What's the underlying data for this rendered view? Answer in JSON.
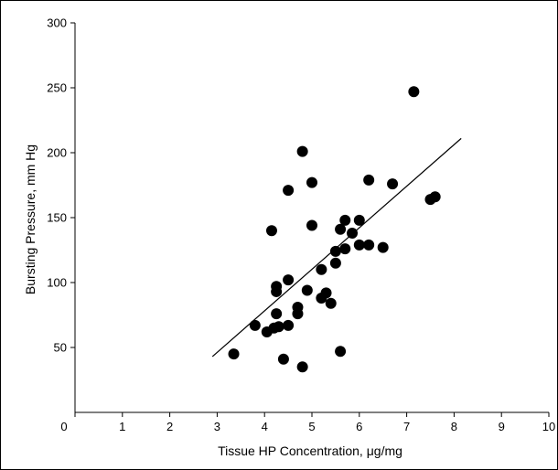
{
  "chart_data": {
    "type": "scatter",
    "xlabel": "Tissue HP Concentration, μg/mg",
    "ylabel": "Bursting Pressure, mm Hg",
    "xlim": [
      0,
      10
    ],
    "ylim": [
      0,
      300
    ],
    "xticks": [
      0,
      1,
      2,
      3,
      4,
      5,
      6,
      7,
      8,
      9,
      10
    ],
    "yticks": [
      50,
      100,
      150,
      200,
      250,
      300
    ],
    "grid": false,
    "points": [
      {
        "x": 3.35,
        "y": 45
      },
      {
        "x": 3.8,
        "y": 67
      },
      {
        "x": 4.05,
        "y": 62
      },
      {
        "x": 4.15,
        "y": 140
      },
      {
        "x": 4.2,
        "y": 65
      },
      {
        "x": 4.25,
        "y": 97
      },
      {
        "x": 4.25,
        "y": 93
      },
      {
        "x": 4.25,
        "y": 76
      },
      {
        "x": 4.3,
        "y": 66
      },
      {
        "x": 4.4,
        "y": 41
      },
      {
        "x": 4.5,
        "y": 171
      },
      {
        "x": 4.5,
        "y": 102
      },
      {
        "x": 4.5,
        "y": 67
      },
      {
        "x": 4.7,
        "y": 81
      },
      {
        "x": 4.7,
        "y": 76
      },
      {
        "x": 4.8,
        "y": 201
      },
      {
        "x": 4.8,
        "y": 35
      },
      {
        "x": 4.9,
        "y": 94
      },
      {
        "x": 5.0,
        "y": 177
      },
      {
        "x": 5.0,
        "y": 144
      },
      {
        "x": 5.2,
        "y": 110
      },
      {
        "x": 5.2,
        "y": 88
      },
      {
        "x": 5.3,
        "y": 92
      },
      {
        "x": 5.4,
        "y": 84
      },
      {
        "x": 5.5,
        "y": 124
      },
      {
        "x": 5.5,
        "y": 115
      },
      {
        "x": 5.6,
        "y": 141
      },
      {
        "x": 5.6,
        "y": 47
      },
      {
        "x": 5.7,
        "y": 148
      },
      {
        "x": 5.7,
        "y": 126
      },
      {
        "x": 5.85,
        "y": 138
      },
      {
        "x": 6.0,
        "y": 148
      },
      {
        "x": 6.0,
        "y": 129
      },
      {
        "x": 6.2,
        "y": 179
      },
      {
        "x": 6.2,
        "y": 129
      },
      {
        "x": 6.5,
        "y": 127
      },
      {
        "x": 6.7,
        "y": 176
      },
      {
        "x": 7.15,
        "y": 247
      },
      {
        "x": 7.5,
        "y": 164
      },
      {
        "x": 7.6,
        "y": 166
      }
    ],
    "trendline": {
      "x": [
        2.9,
        8.15
      ],
      "y": [
        43,
        211
      ]
    }
  }
}
